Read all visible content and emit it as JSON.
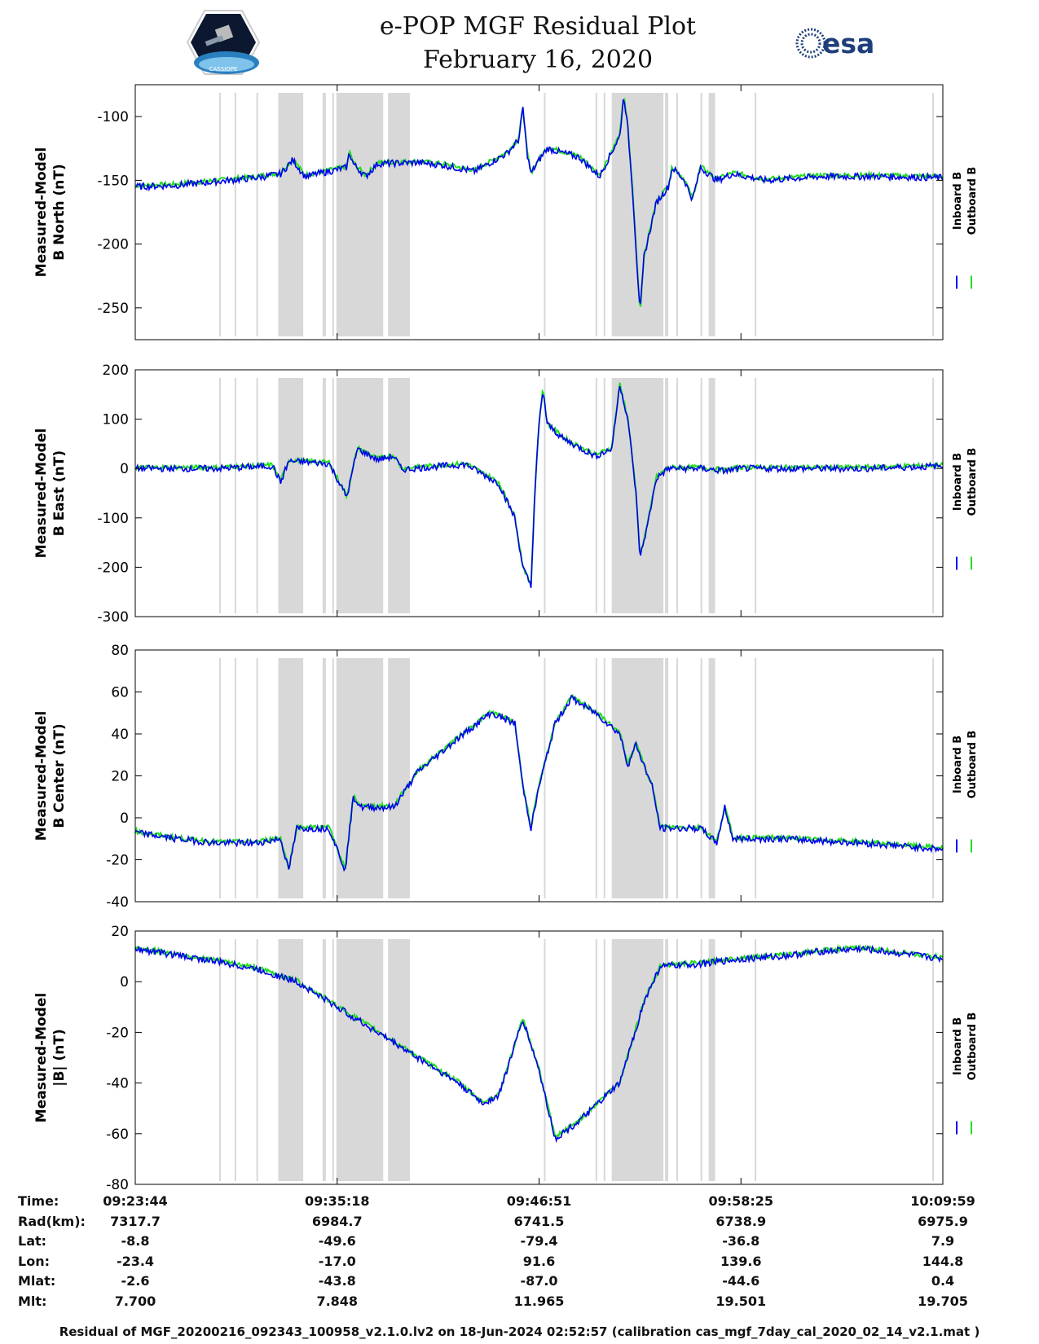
{
  "title": "e-POP MGF Residual Plot",
  "date": "February 16, 2020",
  "logos": {
    "left": "CASSIOPE",
    "right": "esa"
  },
  "colors": {
    "inboard": "#0000ee",
    "outboard": "#22dd22",
    "shade": "#d8d8d8"
  },
  "chart_data": [
    {
      "type": "line",
      "ylabel_line1": "Measured-Model",
      "ylabel_line2": "B North (nT)",
      "ylim": [
        -275,
        -75
      ],
      "yticks": [
        "-100",
        "-150",
        "-200",
        "-250"
      ],
      "ytick_values": [
        -100,
        -150,
        -200,
        -250
      ],
      "legend": [
        "Inboard B",
        "Outboard B"
      ],
      "series_points": [
        [
          0,
          -155
        ],
        [
          0.05,
          -154
        ],
        [
          0.1,
          -151
        ],
        [
          0.15,
          -148
        ],
        [
          0.18,
          -145
        ],
        [
          0.195,
          -134
        ],
        [
          0.21,
          -147
        ],
        [
          0.24,
          -143
        ],
        [
          0.262,
          -140
        ],
        [
          0.265,
          -128
        ],
        [
          0.27,
          -137
        ],
        [
          0.285,
          -147
        ],
        [
          0.3,
          -137
        ],
        [
          0.35,
          -136
        ],
        [
          0.38,
          -138
        ],
        [
          0.42,
          -143
        ],
        [
          0.46,
          -129
        ],
        [
          0.475,
          -118
        ],
        [
          0.48,
          -93
        ],
        [
          0.485,
          -128
        ],
        [
          0.49,
          -145
        ],
        [
          0.497,
          -137
        ],
        [
          0.51,
          -125
        ],
        [
          0.55,
          -132
        ],
        [
          0.575,
          -147
        ],
        [
          0.6,
          -115
        ],
        [
          0.605,
          -83
        ],
        [
          0.61,
          -110
        ],
        [
          0.616,
          -160
        ],
        [
          0.625,
          -255
        ],
        [
          0.63,
          -210
        ],
        [
          0.645,
          -168
        ],
        [
          0.66,
          -155
        ],
        [
          0.665,
          -140
        ],
        [
          0.68,
          -150
        ],
        [
          0.69,
          -165
        ],
        [
          0.7,
          -140
        ],
        [
          0.72,
          -150
        ],
        [
          0.74,
          -145
        ],
        [
          0.78,
          -150
        ],
        [
          0.85,
          -147
        ],
        [
          0.92,
          -147
        ],
        [
          1,
          -148
        ]
      ]
    },
    {
      "type": "line",
      "ylabel_line1": "Measured-Model",
      "ylabel_line2": "B East (nT)",
      "ylim": [
        -300,
        200
      ],
      "yticks": [
        "200",
        "100",
        "0",
        "-100",
        "-200",
        "-300"
      ],
      "ytick_values": [
        200,
        100,
        0,
        -100,
        -200,
        -300
      ],
      "legend": [
        "Inboard B",
        "Outboard B"
      ],
      "series_points": [
        [
          0,
          0
        ],
        [
          0.1,
          0
        ],
        [
          0.17,
          5
        ],
        [
          0.18,
          -28
        ],
        [
          0.19,
          15
        ],
        [
          0.24,
          10
        ],
        [
          0.262,
          -58
        ],
        [
          0.275,
          40
        ],
        [
          0.3,
          18
        ],
        [
          0.32,
          25
        ],
        [
          0.33,
          -2
        ],
        [
          0.38,
          5
        ],
        [
          0.41,
          8
        ],
        [
          0.45,
          -30
        ],
        [
          0.47,
          -100
        ],
        [
          0.48,
          -200
        ],
        [
          0.49,
          -240
        ],
        [
          0.495,
          -40
        ],
        [
          0.5,
          90
        ],
        [
          0.505,
          160
        ],
        [
          0.51,
          90
        ],
        [
          0.53,
          60
        ],
        [
          0.57,
          25
        ],
        [
          0.59,
          40
        ],
        [
          0.6,
          170
        ],
        [
          0.61,
          100
        ],
        [
          0.62,
          -50
        ],
        [
          0.625,
          -180
        ],
        [
          0.635,
          -110
        ],
        [
          0.645,
          -20
        ],
        [
          0.66,
          0
        ],
        [
          0.7,
          0
        ],
        [
          0.73,
          -5
        ],
        [
          0.75,
          0
        ],
        [
          0.8,
          0
        ],
        [
          0.9,
          0
        ],
        [
          1,
          5
        ]
      ]
    },
    {
      "type": "line",
      "ylabel_line1": "Measured-Model",
      "ylabel_line2": "B Center (nT)",
      "ylim": [
        -40,
        80
      ],
      "yticks": [
        "80",
        "60",
        "40",
        "20",
        "0",
        "-20",
        "-40"
      ],
      "ytick_values": [
        80,
        60,
        40,
        20,
        0,
        -20,
        -40
      ],
      "legend": [
        "Inboard B",
        "Outboard B"
      ],
      "series_points": [
        [
          0,
          -7
        ],
        [
          0.05,
          -10
        ],
        [
          0.1,
          -12
        ],
        [
          0.15,
          -12
        ],
        [
          0.18,
          -10
        ],
        [
          0.19,
          -25
        ],
        [
          0.2,
          -5
        ],
        [
          0.24,
          -5
        ],
        [
          0.26,
          -25
        ],
        [
          0.27,
          10
        ],
        [
          0.28,
          5
        ],
        [
          0.32,
          5
        ],
        [
          0.35,
          22
        ],
        [
          0.4,
          38
        ],
        [
          0.44,
          50
        ],
        [
          0.47,
          45
        ],
        [
          0.48,
          15
        ],
        [
          0.49,
          -5
        ],
        [
          0.5,
          15
        ],
        [
          0.52,
          45
        ],
        [
          0.54,
          57
        ],
        [
          0.57,
          50
        ],
        [
          0.6,
          40
        ],
        [
          0.61,
          25
        ],
        [
          0.62,
          35
        ],
        [
          0.64,
          15
        ],
        [
          0.65,
          -5
        ],
        [
          0.7,
          -5
        ],
        [
          0.72,
          -12
        ],
        [
          0.73,
          5
        ],
        [
          0.74,
          -10
        ],
        [
          0.8,
          -10
        ],
        [
          0.9,
          -12
        ],
        [
          1,
          -15
        ]
      ]
    },
    {
      "type": "line",
      "ylabel_line1": "Measured-Model",
      "ylabel_line2": "|B| (nT)",
      "ylim": [
        -80,
        20
      ],
      "yticks": [
        "20",
        "0",
        "-20",
        "-40",
        "-60",
        "-80"
      ],
      "ytick_values": [
        20,
        0,
        -20,
        -40,
        -60,
        -80
      ],
      "legend": [
        "Inboard B",
        "Outboard B"
      ],
      "series_points": [
        [
          0,
          13
        ],
        [
          0.1,
          8
        ],
        [
          0.15,
          5
        ],
        [
          0.2,
          0
        ],
        [
          0.25,
          -10
        ],
        [
          0.3,
          -20
        ],
        [
          0.35,
          -30
        ],
        [
          0.4,
          -40
        ],
        [
          0.43,
          -48
        ],
        [
          0.45,
          -45
        ],
        [
          0.48,
          -15
        ],
        [
          0.5,
          -35
        ],
        [
          0.52,
          -62
        ],
        [
          0.55,
          -55
        ],
        [
          0.6,
          -40
        ],
        [
          0.63,
          -8
        ],
        [
          0.65,
          6
        ],
        [
          0.7,
          7
        ],
        [
          0.75,
          9
        ],
        [
          0.8,
          10
        ],
        [
          0.85,
          12
        ],
        [
          0.9,
          13
        ],
        [
          1,
          9
        ]
      ]
    }
  ],
  "shaded_intervals": [
    [
      0.104,
      0.106
    ],
    [
      0.123,
      0.125
    ],
    [
      0.15,
      0.152
    ],
    [
      0.177,
      0.208
    ],
    [
      0.232,
      0.236
    ],
    [
      0.244,
      0.246
    ],
    [
      0.249,
      0.307
    ],
    [
      0.313,
      0.34
    ],
    [
      0.506,
      0.508
    ],
    [
      0.57,
      0.572
    ],
    [
      0.58,
      0.582
    ],
    [
      0.59,
      0.654
    ],
    [
      0.656,
      0.66
    ],
    [
      0.67,
      0.672
    ],
    [
      0.7,
      0.702
    ],
    [
      0.71,
      0.718
    ],
    [
      0.767,
      0.769
    ],
    [
      0.987,
      0.989
    ]
  ],
  "time_axis": {
    "xticks": [
      "09:23:44",
      "09:35:18",
      "09:46:51",
      "09:58:25",
      "10:09:59"
    ],
    "xtick_values": [
      0,
      0.25,
      0.5,
      0.75,
      1
    ]
  },
  "info_rows": [
    {
      "label": "Time:",
      "values": [
        "09:23:44",
        "09:35:18",
        "09:46:51",
        "09:58:25",
        "10:09:59"
      ]
    },
    {
      "label": "Rad(km):",
      "values": [
        "7317.7",
        "6984.7",
        "6741.5",
        "6738.9",
        "6975.9"
      ]
    },
    {
      "label": "Lat:",
      "values": [
        "-8.8",
        "-49.6",
        "-79.4",
        "-36.8",
        "7.9"
      ]
    },
    {
      "label": "Lon:",
      "values": [
        "-23.4",
        "-17.0",
        "91.6",
        "139.6",
        "144.8"
      ]
    },
    {
      "label": "Mlat:",
      "values": [
        "-2.6",
        "-43.8",
        "-87.0",
        "-44.6",
        "0.4"
      ]
    },
    {
      "label": "Mlt:",
      "values": [
        "7.700",
        "7.848",
        "11.965",
        "19.501",
        "19.705"
      ]
    }
  ],
  "footer": "Residual of MGF_20200216_092343_100958_v2.1.0.lv2 on 18-Jun-2024 02:52:57 (calibration cas_mgf_7day_cal_2020_02_14_v2.1.mat )"
}
